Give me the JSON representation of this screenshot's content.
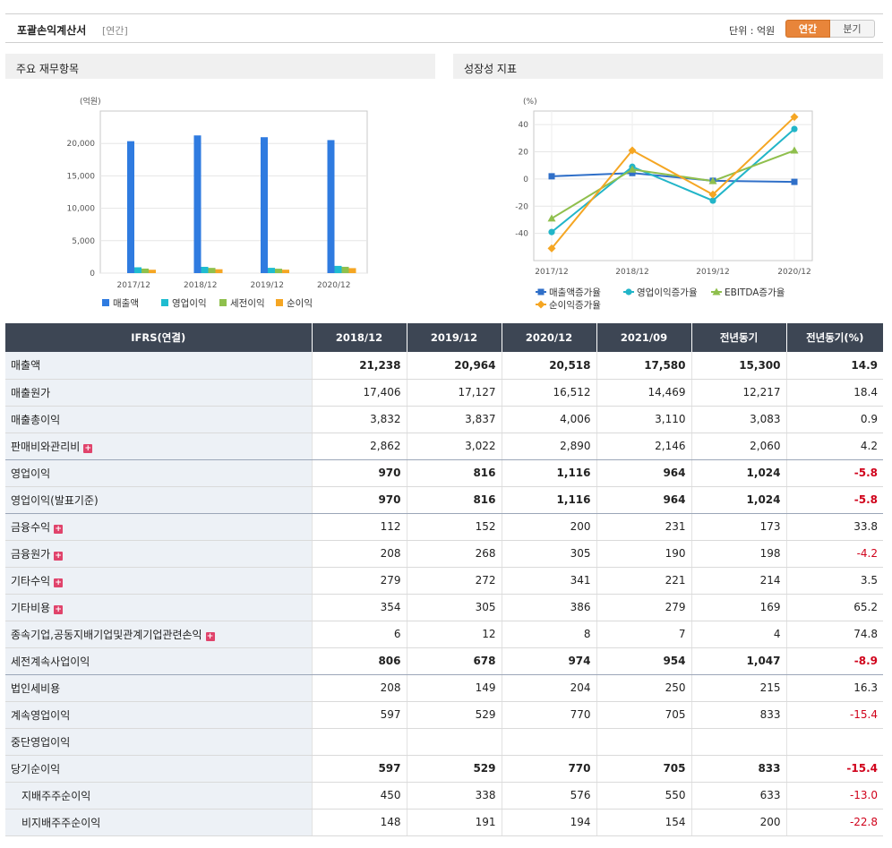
{
  "header": {
    "title": "포괄손익계산서",
    "subtitle": "[연간]",
    "unit": "단위 : 억원",
    "toggle_annual": "연간",
    "toggle_quarter": "분기"
  },
  "panels": {
    "left_title": "주요 재무항목",
    "right_title": "성장성 지표"
  },
  "colors": {
    "revenue": "#2f7be0",
    "op": "#1fbcd0",
    "pretax": "#8fc04d",
    "net": "#f5a623",
    "g_revenue": "#2f6fc8",
    "g_op": "#22b5c8",
    "g_ebitda": "#8fbf4d",
    "g_net": "#f5a623"
  },
  "chart_data": [
    {
      "type": "bar",
      "ylabel": "(억원)",
      "ylim": [
        0,
        25000
      ],
      "yticks": [
        0,
        5000,
        10000,
        15000,
        20000
      ],
      "ytick_labels": [
        "0",
        "5,000",
        "10,000",
        "15,000",
        "20,000"
      ],
      "categories": [
        "2017/12",
        "2018/12",
        "2019/12",
        "2020/12"
      ],
      "series": [
        {
          "name": "매출액",
          "values": [
            20350,
            21238,
            20964,
            20518
          ]
        },
        {
          "name": "영업이익",
          "values": [
            900,
            970,
            816,
            1116
          ]
        },
        {
          "name": "세전이익",
          "values": [
            700,
            806,
            678,
            974
          ]
        },
        {
          "name": "순이익",
          "values": [
            520,
            597,
            529,
            770
          ]
        }
      ],
      "legend": "bottom",
      "grid": true
    },
    {
      "type": "line",
      "ylabel": "(%)",
      "ylim": [
        -60,
        50
      ],
      "yticks": [
        -40,
        -20,
        0,
        20,
        40
      ],
      "ytick_labels": [
        "-40",
        "-20",
        "0",
        "20",
        "40"
      ],
      "categories": [
        "2017/12",
        "2018/12",
        "2019/12",
        "2020/12"
      ],
      "series": [
        {
          "name": "매출액증가율",
          "values": [
            2,
            4.4,
            -1.3,
            -2.1
          ]
        },
        {
          "name": "영업이익증가율",
          "values": [
            -39,
            9,
            -15.9,
            36.8
          ]
        },
        {
          "name": "EBITDA증가율",
          "values": [
            -29,
            7,
            -1.5,
            21
          ]
        },
        {
          "name": "순이익증가율",
          "values": [
            -51,
            21,
            -11.4,
            45.6
          ]
        }
      ],
      "legend": "bottom",
      "grid": true
    }
  ],
  "table": {
    "headers": [
      "IFRS(연결)",
      "2018/12",
      "2019/12",
      "2020/12",
      "2021/09",
      "전년동기",
      "전년동기(%)"
    ],
    "rows": [
      {
        "label": "매출액",
        "values": [
          "21,238",
          "20,964",
          "20,518",
          "17,580",
          "15,300",
          "14.9"
        ]
      },
      {
        "label": "매출원가",
        "values": [
          "17,406",
          "17,127",
          "16,512",
          "14,469",
          "12,217",
          "18.4"
        ]
      },
      {
        "label": "매출총이익",
        "values": [
          "3,832",
          "3,837",
          "4,006",
          "3,110",
          "3,083",
          "0.9"
        ]
      },
      {
        "label": "판매비와관리비",
        "values": [
          "2,862",
          "3,022",
          "2,890",
          "2,146",
          "2,060",
          "4.2"
        ]
      },
      {
        "label": "영업이익",
        "values": [
          "970",
          "816",
          "1,116",
          "964",
          "1,024",
          "-5.8"
        ]
      },
      {
        "label": "영업이익(발표기준)",
        "values": [
          "970",
          "816",
          "1,116",
          "964",
          "1,024",
          "-5.8"
        ]
      },
      {
        "label": "금융수익",
        "values": [
          "112",
          "152",
          "200",
          "231",
          "173",
          "33.8"
        ]
      },
      {
        "label": "금융원가",
        "values": [
          "208",
          "268",
          "305",
          "190",
          "198",
          "-4.2"
        ]
      },
      {
        "label": "기타수익",
        "values": [
          "279",
          "272",
          "341",
          "221",
          "214",
          "3.5"
        ]
      },
      {
        "label": "기타비용",
        "values": [
          "354",
          "305",
          "386",
          "279",
          "169",
          "65.2"
        ]
      },
      {
        "label": "종속기업,공동지배기업및관계기업관련손익",
        "values": [
          "6",
          "12",
          "8",
          "7",
          "4",
          "74.8"
        ]
      },
      {
        "label": "세전계속사업이익",
        "values": [
          "806",
          "678",
          "974",
          "954",
          "1,047",
          "-8.9"
        ]
      },
      {
        "label": "법인세비용",
        "values": [
          "208",
          "149",
          "204",
          "250",
          "215",
          "16.3"
        ]
      },
      {
        "label": "계속영업이익",
        "values": [
          "597",
          "529",
          "770",
          "705",
          "833",
          "-15.4"
        ]
      },
      {
        "label": "중단영업이익",
        "values": [
          "",
          "",
          "",
          "",
          "",
          ""
        ]
      },
      {
        "label": "당기순이익",
        "values": [
          "597",
          "529",
          "770",
          "705",
          "833",
          "-15.4"
        ]
      },
      {
        "label": "지배주주순이익",
        "values": [
          "450",
          "338",
          "576",
          "550",
          "633",
          "-13.0"
        ]
      },
      {
        "label": "비지배주주순이익",
        "values": [
          "148",
          "191",
          "194",
          "154",
          "200",
          "-22.8"
        ]
      }
    ]
  }
}
